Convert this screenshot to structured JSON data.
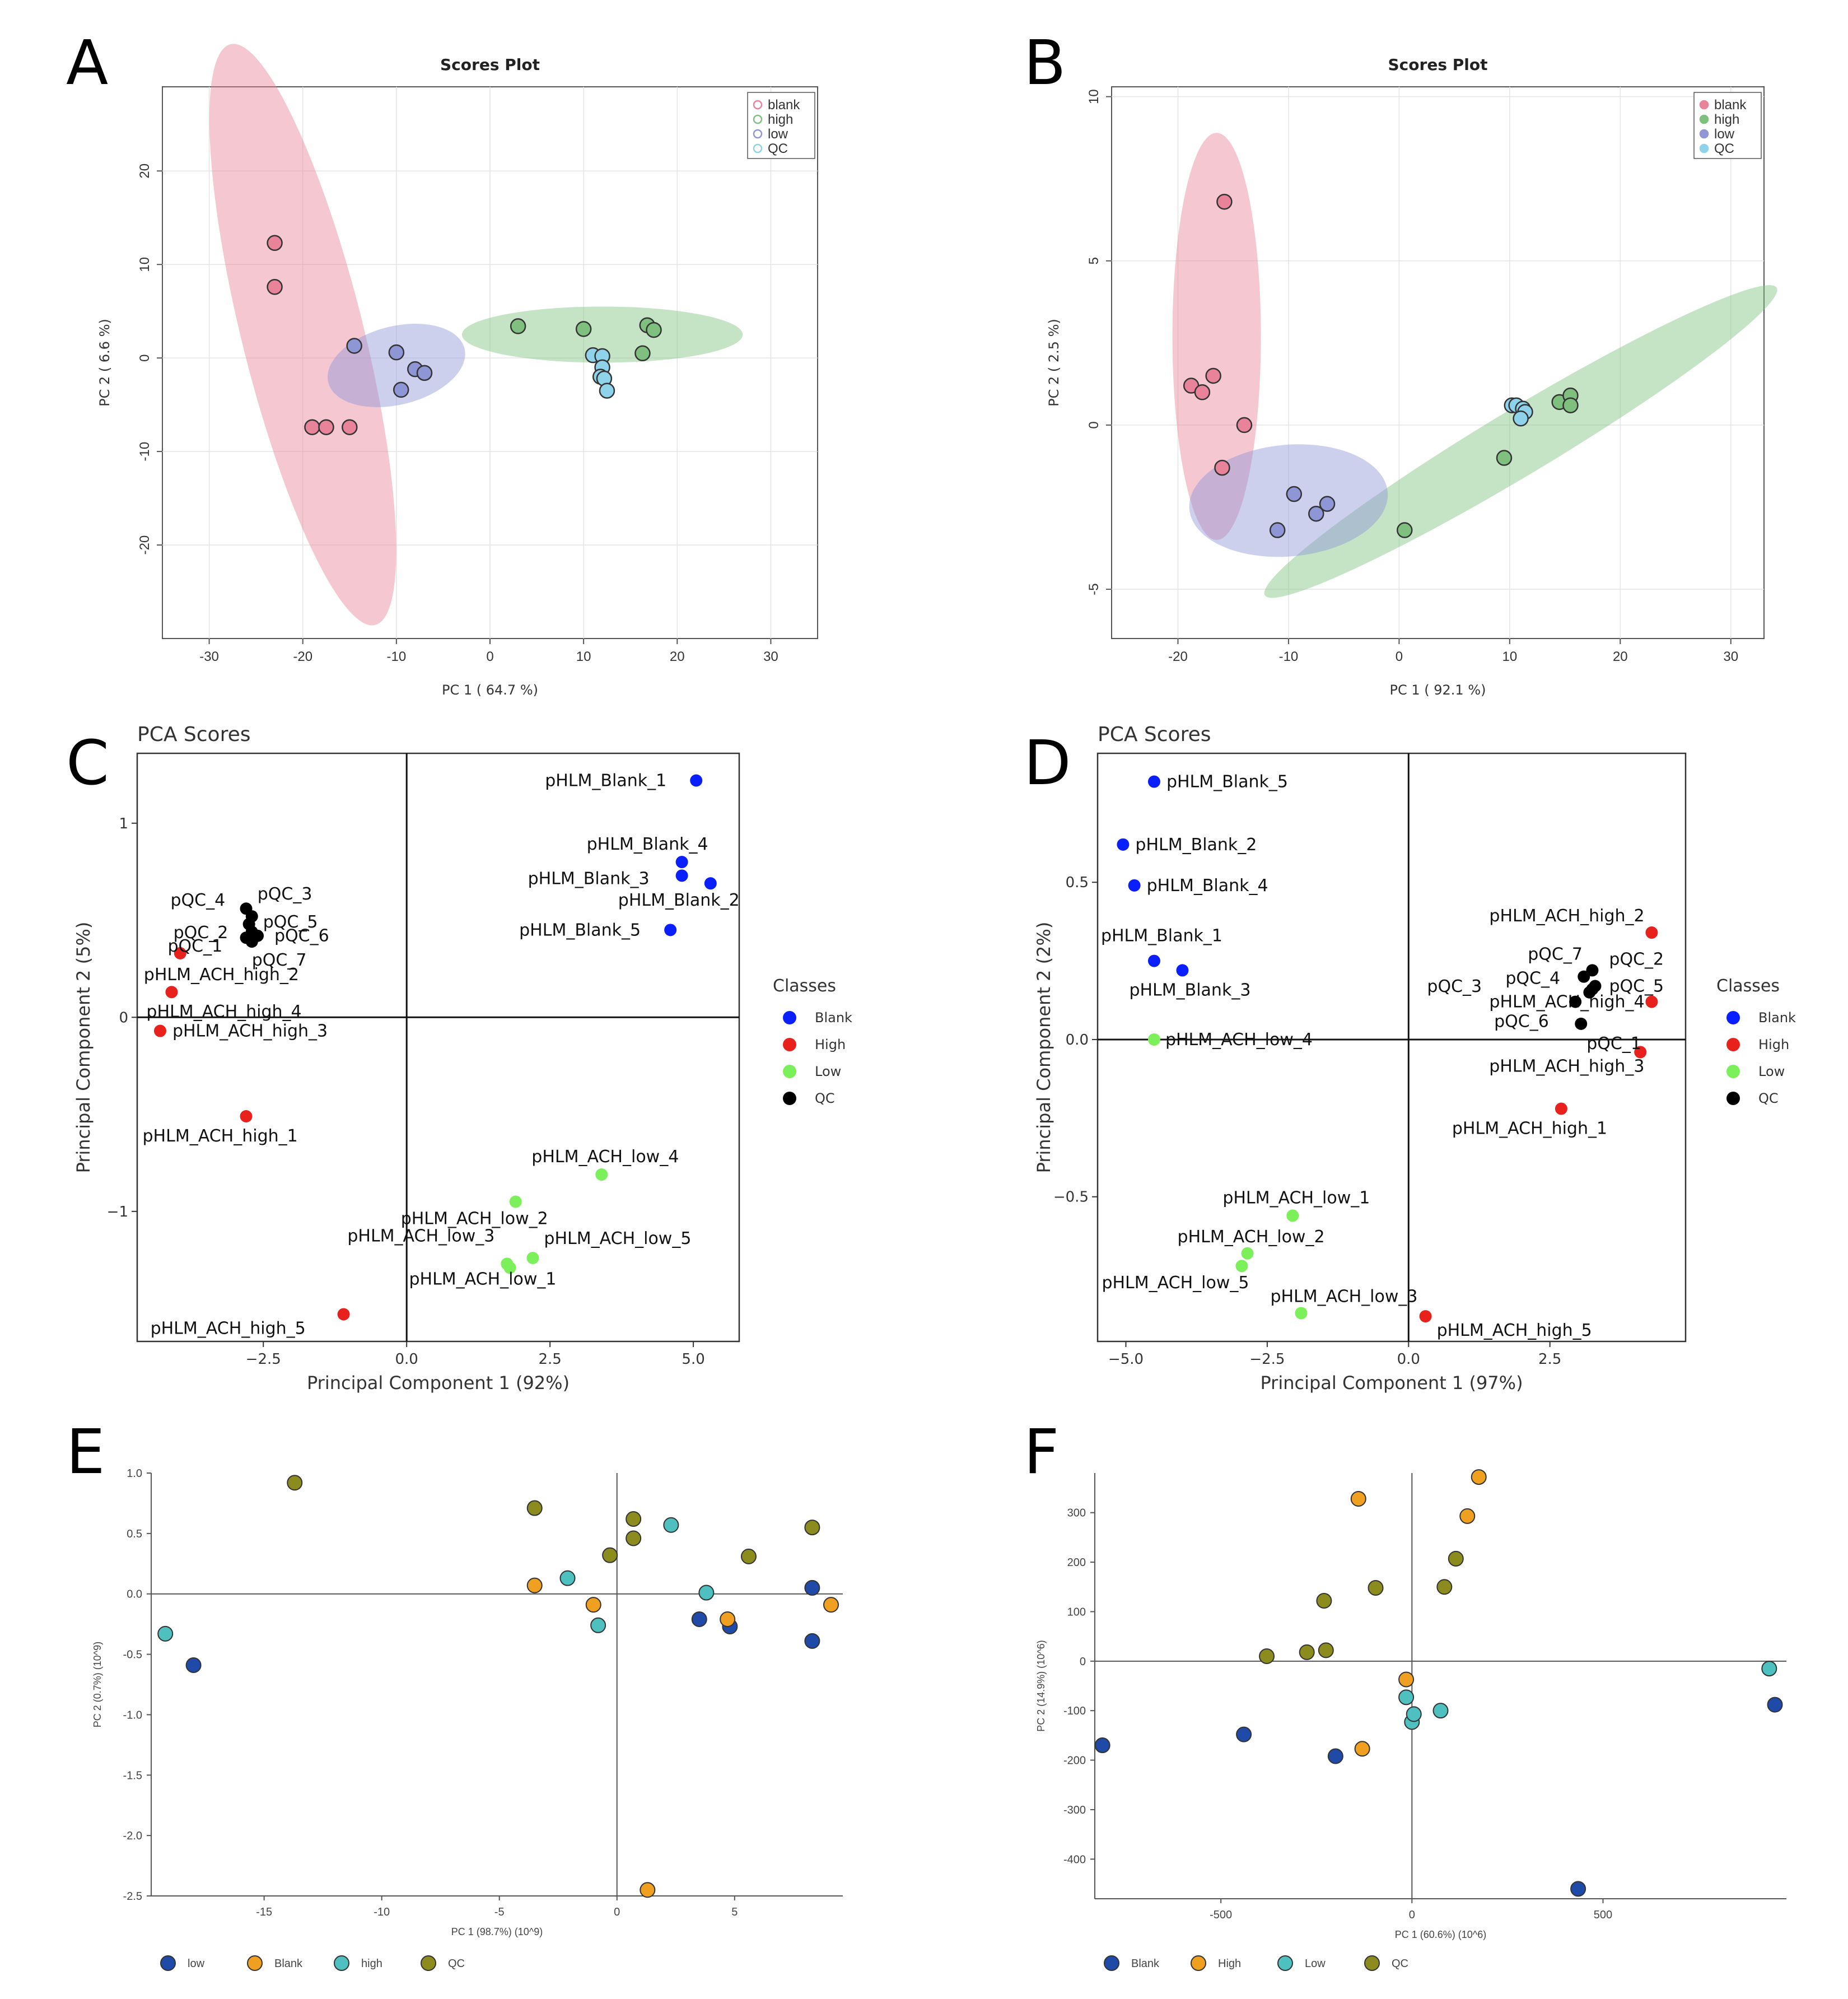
{
  "panel_letters": [
    "A",
    "B",
    "C",
    "D",
    "E",
    "F"
  ],
  "colors": {
    "blank_pink": "#e8839a",
    "high_green": "#7fc07f",
    "low_blue": "#8f96d6",
    "qc_cyan": "#8fd3ea",
    "blue": "#0a1fff",
    "red": "#e8211c",
    "green": "#7cf05a",
    "black": "#000000",
    "ef_navy": "#1f4aa8",
    "ef_orange": "#f0a020",
    "ef_teal": "#4fc0c0",
    "ef_olive": "#8c8c1e"
  },
  "chart_data": [
    {
      "id": "A",
      "type": "scatter",
      "title": "Scores Plot",
      "xlabel": "PC 1 ( 64.7 %)",
      "ylabel": "PC 2 ( 6.6 %)",
      "xlim": [
        -35,
        35
      ],
      "ylim": [
        -30,
        29
      ],
      "xticks": [
        -30,
        -20,
        -10,
        0,
        10,
        20,
        30
      ],
      "yticks": [
        -20,
        -10,
        0,
        10,
        20
      ],
      "legend": [
        "blank",
        "high",
        "low",
        "QC"
      ],
      "series": [
        {
          "name": "blank",
          "color": "#e8839a",
          "points": [
            [
              -23,
              12.3
            ],
            [
              -23,
              7.6
            ],
            [
              -19,
              -7.4
            ],
            [
              -17.5,
              -7.4
            ],
            [
              -15,
              -7.4
            ]
          ],
          "ellipse": {
            "cx": -20,
            "cy": 2.5,
            "rx": 6.5,
            "ry": 32,
            "angle": -14
          }
        },
        {
          "name": "high",
          "color": "#7fc07f",
          "points": [
            [
              3,
              3.4
            ],
            [
              10,
              3.1
            ],
            [
              16.8,
              3.5
            ],
            [
              17.5,
              3.0
            ],
            [
              16.3,
              0.5
            ]
          ],
          "ellipse": {
            "cx": 12,
            "cy": 2.5,
            "rx": 15,
            "ry": 3,
            "angle": 0
          }
        },
        {
          "name": "low",
          "color": "#8f96d6",
          "points": [
            [
              -14.5,
              1.3
            ],
            [
              -10,
              0.6
            ],
            [
              -8,
              -1.2
            ],
            [
              -7,
              -1.6
            ],
            [
              -9.5,
              -3.4
            ]
          ],
          "ellipse": {
            "cx": -10,
            "cy": -0.8,
            "rx": 7.5,
            "ry": 4.2,
            "angle": -14
          }
        },
        {
          "name": "QC",
          "color": "#8fd3ea",
          "points": [
            [
              11,
              0.3
            ],
            [
              12,
              0.2
            ],
            [
              12,
              -1
            ],
            [
              11.8,
              -2
            ],
            [
              12.2,
              -2.2
            ],
            [
              12.5,
              -3.5
            ]
          ]
        }
      ]
    },
    {
      "id": "B",
      "type": "scatter",
      "title": "Scores Plot",
      "xlabel": "PC 1 ( 92.1 %)",
      "ylabel": "PC 2 ( 2.5 %)",
      "xlim": [
        -26,
        33
      ],
      "ylim": [
        -6.5,
        10.3
      ],
      "xticks": [
        -20,
        -10,
        0,
        10,
        20,
        30
      ],
      "yticks": [
        -5,
        0,
        5,
        10
      ],
      "legend": [
        "blank",
        "high",
        "low",
        "QC"
      ],
      "series": [
        {
          "name": "blank",
          "color": "#e8839a",
          "points": [
            [
              -15.8,
              6.8
            ],
            [
              -18.8,
              1.2
            ],
            [
              -17.8,
              1.0
            ],
            [
              -16.8,
              1.5
            ],
            [
              -14,
              0.0
            ],
            [
              -16,
              -1.3
            ]
          ],
          "ellipse": {
            "cx": -16.5,
            "cy": 2.7,
            "rx": 4,
            "ry": 6.2,
            "angle": 0
          }
        },
        {
          "name": "high",
          "color": "#7fc07f",
          "points": [
            [
              0.5,
              -3.2
            ],
            [
              9.5,
              -1.0
            ],
            [
              14.5,
              0.7
            ],
            [
              15.5,
              0.9
            ],
            [
              15.5,
              0.6
            ]
          ],
          "ellipse": {
            "cx": 11,
            "cy": -0.5,
            "rx": 27,
            "ry": 1.0,
            "angle": -31
          }
        },
        {
          "name": "low",
          "color": "#8f96d6",
          "points": [
            [
              -11,
              -3.2
            ],
            [
              -9.5,
              -2.1
            ],
            [
              -7.5,
              -2.7
            ],
            [
              -6.5,
              -2.4
            ]
          ],
          "ellipse": {
            "cx": -10,
            "cy": -2.3,
            "rx": 9,
            "ry": 1.7,
            "angle": -5
          }
        },
        {
          "name": "QC",
          "color": "#8fd3ea",
          "points": [
            [
              10.2,
              0.6
            ],
            [
              10.6,
              0.6
            ],
            [
              11.2,
              0.5
            ],
            [
              11.4,
              0.4
            ],
            [
              11,
              0.2
            ]
          ]
        }
      ]
    },
    {
      "id": "C",
      "type": "scatter",
      "title": "PCA Scores",
      "xlabel": "Principal Component 1 (92%)",
      "ylabel": "Principal Component 2 (5%)",
      "xlim": [
        -4.7,
        5.8
      ],
      "ylim": [
        -1.67,
        1.36
      ],
      "xticks": [
        -2.5,
        0.0,
        2.5,
        5.0
      ],
      "xtick_labels": [
        "−2.5",
        "0.0",
        "2.5",
        "5.0"
      ],
      "yticks": [
        -1,
        0,
        1
      ],
      "ytick_labels": [
        "−1",
        "0",
        "1"
      ],
      "legend_title": "Classes",
      "legend": [
        "Blank",
        "High",
        "Low",
        "QC"
      ],
      "series": [
        {
          "name": "Blank",
          "color": "#0a1fff",
          "points": [
            {
              "x": 5.05,
              "y": 1.22,
              "label": "pHLM_Blank_1"
            },
            {
              "x": 4.8,
              "y": 0.8,
              "label": "pHLM_Blank_4"
            },
            {
              "x": 4.8,
              "y": 0.73,
              "label": "pHLM_Blank_3"
            },
            {
              "x": 5.3,
              "y": 0.69,
              "label": "pHLM_Blank_2"
            },
            {
              "x": 4.6,
              "y": 0.45,
              "label": "pHLM_Blank_5"
            }
          ]
        },
        {
          "name": "High",
          "color": "#e8211c",
          "points": [
            {
              "x": -3.95,
              "y": 0.33,
              "label": "pHLM_ACH_high_2"
            },
            {
              "x": -4.1,
              "y": 0.13,
              "label": "pHLM_ACH_high_4"
            },
            {
              "x": -4.3,
              "y": -0.07,
              "label": "pHLM_ACH_high_3"
            },
            {
              "x": -2.8,
              "y": -0.51,
              "label": "pHLM_ACH_high_1"
            },
            {
              "x": -1.1,
              "y": -1.53,
              "label": "pHLM_ACH_high_5"
            }
          ]
        },
        {
          "name": "Low",
          "color": "#7cf05a",
          "points": [
            {
              "x": 3.4,
              "y": -0.81,
              "label": "pHLM_ACH_low_4"
            },
            {
              "x": 1.9,
              "y": -0.95,
              "label": "pHLM_ACH_low_2"
            },
            {
              "x": 1.75,
              "y": -1.27,
              "label": "pHLM_ACH_low_3"
            },
            {
              "x": 2.2,
              "y": -1.24,
              "label": "pHLM_ACH_low_5"
            },
            {
              "x": 1.8,
              "y": -1.29,
              "label": "pHLM_ACH_low_1"
            }
          ]
        },
        {
          "name": "QC",
          "color": "#000000",
          "points": [
            {
              "x": -2.8,
              "y": 0.56,
              "label": "pQC_4"
            },
            {
              "x": -2.7,
              "y": 0.52,
              "label": "pQC_3"
            },
            {
              "x": -2.75,
              "y": 0.48,
              "label": "pQC_2"
            },
            {
              "x": -2.7,
              "y": 0.44,
              "label": "pQC_5"
            },
            {
              "x": -2.6,
              "y": 0.42,
              "label": "pQC_6"
            },
            {
              "x": -2.8,
              "y": 0.41,
              "label": "pQC_1"
            },
            {
              "x": -2.7,
              "y": 0.39,
              "label": "pQC_7"
            }
          ]
        }
      ]
    },
    {
      "id": "D",
      "type": "scatter",
      "title": "PCA Scores",
      "xlabel": "Principal Component 1 (97%)",
      "ylabel": "Principal Component 2 (2%)",
      "xlim": [
        -5.5,
        4.9
      ],
      "ylim": [
        -0.96,
        0.91
      ],
      "xticks": [
        -5.0,
        -2.5,
        0.0,
        2.5
      ],
      "xtick_labels": [
        "−5.0",
        "−2.5",
        "0.0",
        "2.5"
      ],
      "yticks": [
        -0.5,
        0.0,
        0.5
      ],
      "ytick_labels": [
        "−0.5",
        "0.0",
        "0.5"
      ],
      "legend_title": "Classes",
      "legend": [
        "Blank",
        "High",
        "Low",
        "QC"
      ],
      "series": [
        {
          "name": "Blank",
          "color": "#0a1fff",
          "points": [
            {
              "x": -4.5,
              "y": 0.82,
              "label": "pHLM_Blank_5"
            },
            {
              "x": -5.05,
              "y": 0.62,
              "label": "pHLM_Blank_2"
            },
            {
              "x": -4.85,
              "y": 0.49,
              "label": "pHLM_Blank_4"
            },
            {
              "x": -4.5,
              "y": 0.25,
              "label": "pHLM_Blank_1"
            },
            {
              "x": -4.0,
              "y": 0.22,
              "label": "pHLM_Blank_3"
            }
          ]
        },
        {
          "name": "High",
          "color": "#e8211c",
          "points": [
            {
              "x": 4.3,
              "y": 0.34,
              "label": "pHLM_ACH_high_2"
            },
            {
              "x": 4.3,
              "y": 0.12,
              "label": "pHLM_ACH_high_4"
            },
            {
              "x": 4.1,
              "y": -0.04,
              "label": "pHLM_ACH_high_3"
            },
            {
              "x": 2.7,
              "y": -0.22,
              "label": "pHLM_ACH_high_1"
            },
            {
              "x": 0.3,
              "y": -0.88,
              "label": "pHLM_ACH_high_5"
            }
          ]
        },
        {
          "name": "Low",
          "color": "#7cf05a",
          "points": [
            {
              "x": -4.5,
              "y": 0.0,
              "label": "pHLM_ACH_low_4"
            },
            {
              "x": -2.05,
              "y": -0.56,
              "label": "pHLM_ACH_low_1"
            },
            {
              "x": -2.85,
              "y": -0.68,
              "label": "pHLM_ACH_low_2"
            },
            {
              "x": -2.95,
              "y": -0.72,
              "label": "pHLM_ACH_low_5"
            },
            {
              "x": -1.9,
              "y": -0.87,
              "label": "pHLM_ACH_low_3"
            }
          ]
        },
        {
          "name": "QC",
          "color": "#000000",
          "points": [
            {
              "x": 3.25,
              "y": 0.22,
              "label": "pQC_2"
            },
            {
              "x": 3.1,
              "y": 0.2,
              "label": "pQC_7"
            },
            {
              "x": 3.3,
              "y": 0.17,
              "label": "pQC_5"
            },
            {
              "x": 3.25,
              "y": 0.16,
              "label": "pQC_3"
            },
            {
              "x": 3.2,
              "y": 0.15,
              "label": "pQC_4"
            },
            {
              "x": 2.95,
              "y": 0.12,
              "label": "pQC_6"
            },
            {
              "x": 3.05,
              "y": 0.05,
              "label": "pQC_1"
            }
          ]
        }
      ]
    },
    {
      "id": "E",
      "type": "scatter",
      "title": "",
      "xlabel": "PC 1 (98.7%) (10^9)",
      "ylabel": "PC 2 (0.7%) (10^9)",
      "xlim": [
        -19.8,
        9.6
      ],
      "ylim": [
        -2.5,
        1.0
      ],
      "xticks": [
        -15,
        -10,
        -5,
        0,
        5
      ],
      "yticks": [
        -2.5,
        -2.0,
        -1.5,
        -1.0,
        -0.5,
        0.0,
        0.5,
        1.0
      ],
      "ytick_labels": [
        "-2.5",
        "-2.0",
        "-1.5",
        "-1.0",
        "-0.5",
        "0.0",
        "0.5",
        "1.0"
      ],
      "legend": [
        "low",
        "Blank",
        "high",
        "QC"
      ],
      "series": [
        {
          "name": "low",
          "color": "#1f4aa8",
          "points": [
            [
              -18,
              -0.59
            ],
            [
              3.5,
              -0.21
            ],
            [
              4.8,
              -0.27
            ],
            [
              8.3,
              0.05
            ],
            [
              8.3,
              -0.39
            ]
          ]
        },
        {
          "name": "Blank",
          "color": "#f0a020",
          "points": [
            [
              -3.5,
              0.07
            ],
            [
              -1,
              -0.09
            ],
            [
              4.7,
              -0.21
            ],
            [
              9.1,
              -0.09
            ],
            [
              1.3,
              -2.45
            ]
          ]
        },
        {
          "name": "high",
          "color": "#4fc0c0",
          "points": [
            [
              -19.2,
              -0.33
            ],
            [
              -2.1,
              0.13
            ],
            [
              -0.8,
              -0.26
            ],
            [
              2.3,
              0.57
            ],
            [
              3.8,
              0.01
            ]
          ]
        },
        {
          "name": "QC",
          "color": "#8c8c1e",
          "points": [
            [
              -13.7,
              0.92
            ],
            [
              -3.5,
              0.71
            ],
            [
              -0.3,
              0.32
            ],
            [
              0.7,
              0.62
            ],
            [
              0.7,
              0.46
            ],
            [
              5.6,
              0.31
            ],
            [
              8.3,
              0.55
            ]
          ]
        }
      ]
    },
    {
      "id": "F",
      "type": "scatter",
      "title": "",
      "xlabel": "PC 1 (60.6%) (10^6)",
      "ylabel": "PC 2 (14.9%) (10^6)",
      "xlim": [
        -830,
        980
      ],
      "ylim": [
        -480,
        380
      ],
      "xticks": [
        -500,
        0,
        500
      ],
      "yticks": [
        -400,
        -300,
        -200,
        -100,
        0,
        100,
        200,
        300
      ],
      "legend": [
        "Blank",
        "High",
        "Low",
        "QC"
      ],
      "series": [
        {
          "name": "Blank",
          "color": "#1f4aa8",
          "points": [
            [
              -810,
              -170
            ],
            [
              -440,
              -148
            ],
            [
              -200,
              -192
            ],
            [
              435,
              -460
            ],
            [
              950,
              -88
            ]
          ]
        },
        {
          "name": "High",
          "color": "#f0a020",
          "points": [
            [
              -140,
              328
            ],
            [
              -15,
              -37
            ],
            [
              -130,
              -177
            ],
            [
              145,
              293
            ],
            [
              175,
              372
            ]
          ]
        },
        {
          "name": "Low",
          "color": "#4fc0c0",
          "points": [
            [
              -15,
              -73
            ],
            [
              0,
              -123
            ],
            [
              5,
              -107
            ],
            [
              75,
              -100
            ],
            [
              935,
              -15
            ]
          ]
        },
        {
          "name": "QC",
          "color": "#8c8c1e",
          "points": [
            [
              -380,
              10
            ],
            [
              -275,
              18
            ],
            [
              -230,
              122
            ],
            [
              -225,
              22
            ],
            [
              -95,
              148
            ],
            [
              85,
              150
            ],
            [
              115,
              207
            ]
          ]
        }
      ]
    }
  ]
}
